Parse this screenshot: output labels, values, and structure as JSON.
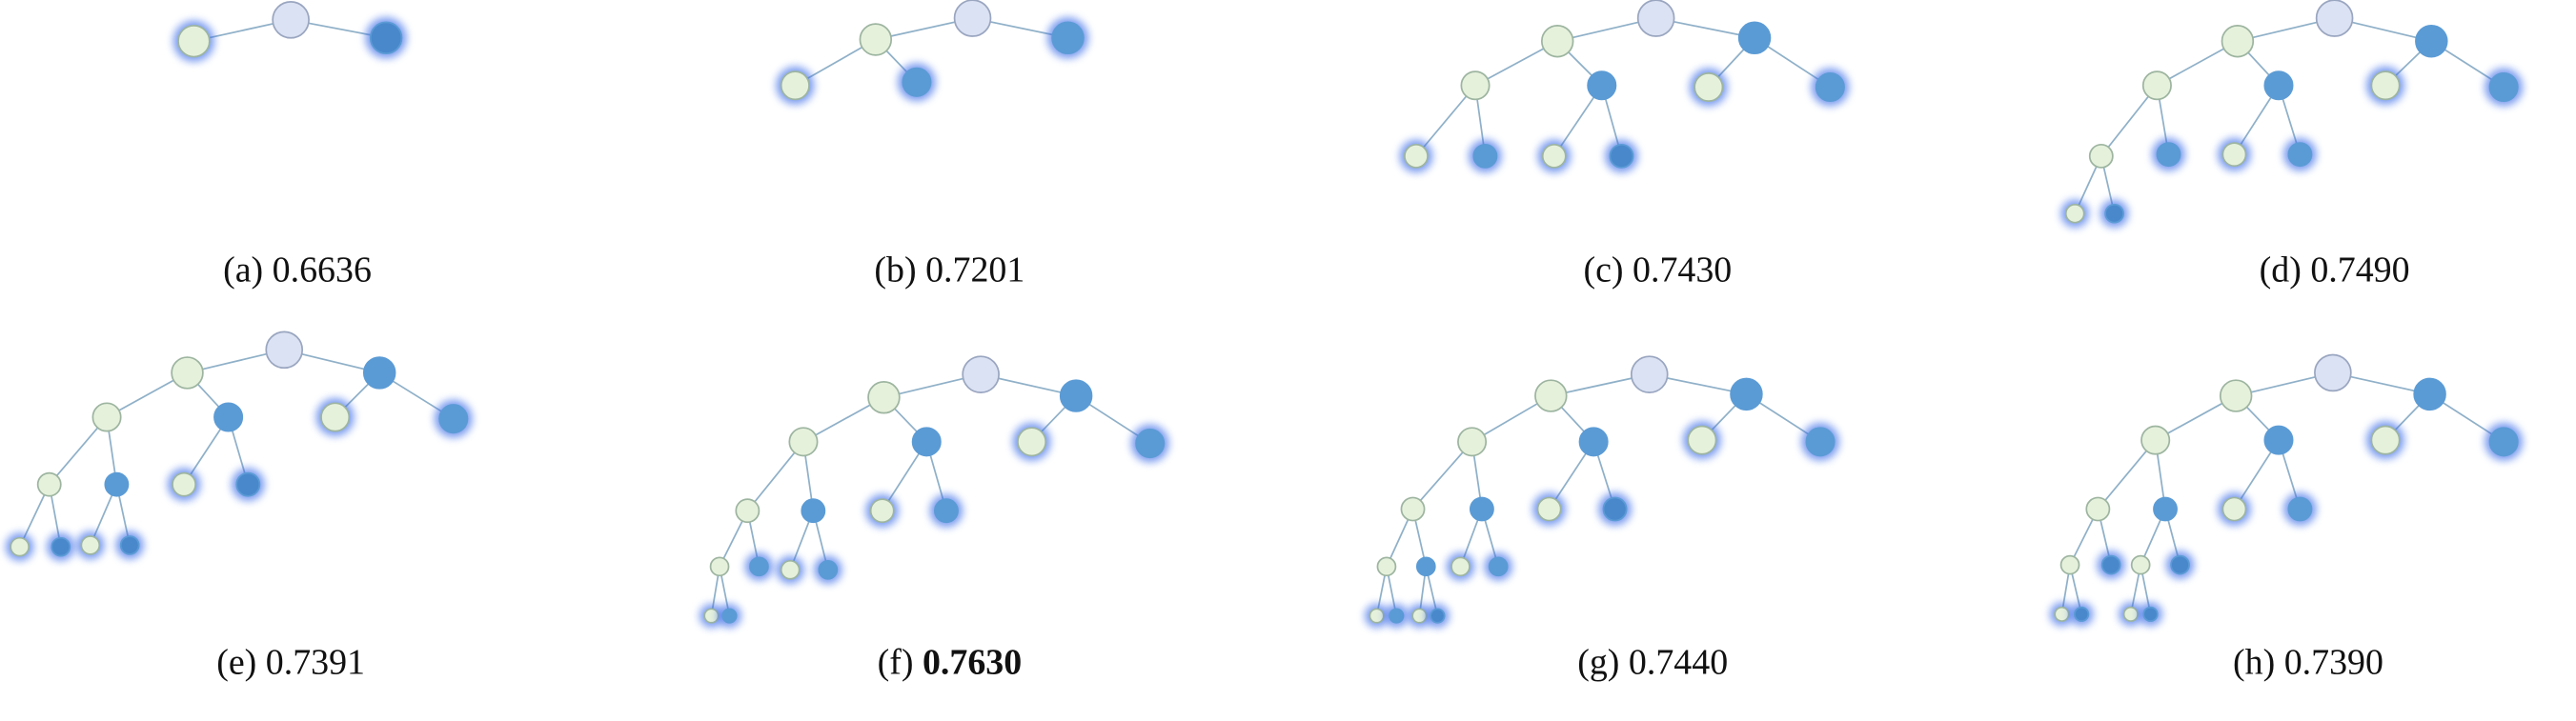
{
  "panels": [
    {
      "label": "(a)",
      "score": "0.6636"
    },
    {
      "label": "(b)",
      "score": "0.7201"
    },
    {
      "label": "(c)",
      "score": "0.7430"
    },
    {
      "label": "(d)",
      "score": "0.7490"
    },
    {
      "label": "(e)",
      "score": "0.7391"
    },
    {
      "label": "(f)",
      "score": "0.7630"
    },
    {
      "label": "(g)",
      "score": "0.7440"
    },
    {
      "label": "(h)",
      "score": "0.7390"
    }
  ]
}
